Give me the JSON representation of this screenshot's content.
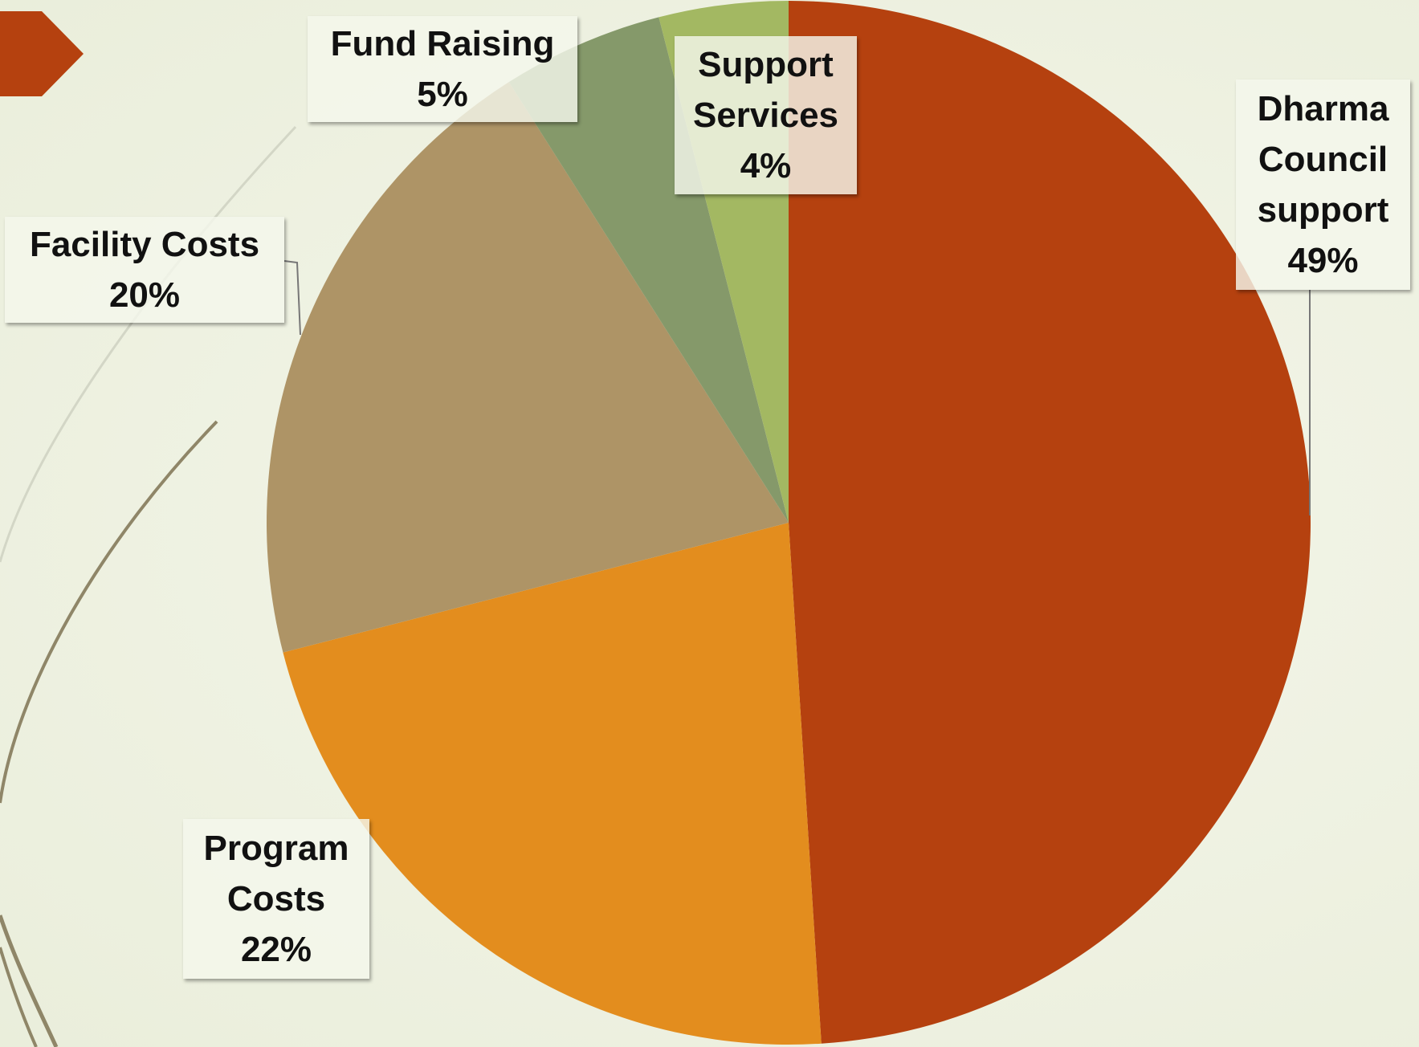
{
  "chart_data": {
    "type": "pie",
    "categories": [
      "Dharma Council support",
      "Program Costs",
      "Facility Costs",
      "Fund Raising",
      "Support Services"
    ],
    "values": [
      49,
      22,
      20,
      5,
      4
    ],
    "value_labels": [
      "49%",
      "22%",
      "20%",
      "5%",
      "4%"
    ],
    "colors": [
      "#b5410f",
      "#e38d1e",
      "#ae9466",
      "#85996a",
      "#a3b862"
    ]
  }
}
